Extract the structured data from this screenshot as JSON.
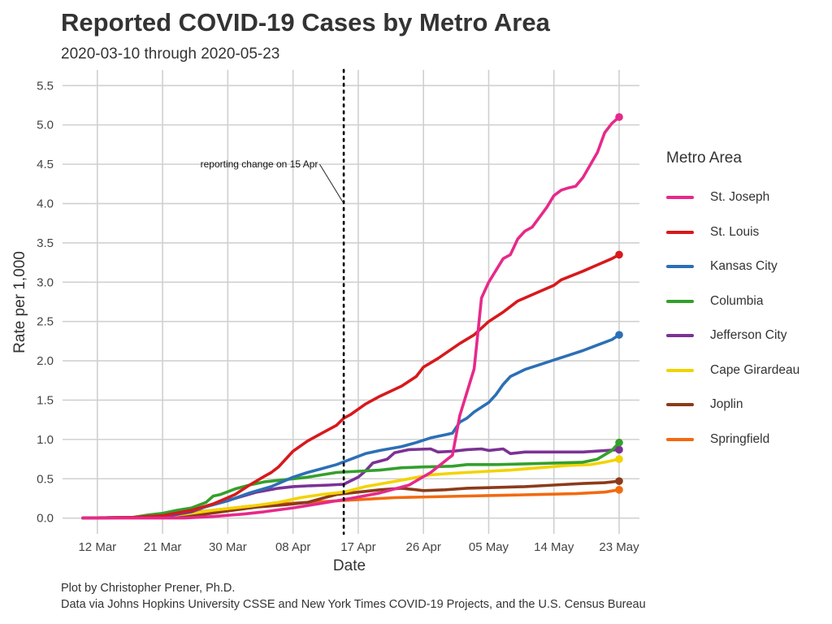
{
  "chart_data": {
    "type": "line",
    "title": "Reported COVID-19 Cases by Metro Area",
    "subtitle": "2020-03-10 through 2020-05-23",
    "xlabel": "Date",
    "ylabel": "Rate per 1,000",
    "xlim": [
      "2020-03-10",
      "2020-05-23"
    ],
    "ylim": [
      -0.2,
      5.7
    ],
    "x_ticks": [
      {
        "date": "2020-03-12",
        "label": "12 Mar"
      },
      {
        "date": "2020-03-21",
        "label": "21 Mar"
      },
      {
        "date": "2020-03-30",
        "label": "30 Mar"
      },
      {
        "date": "2020-04-08",
        "label": "08 Apr"
      },
      {
        "date": "2020-04-17",
        "label": "17 Apr"
      },
      {
        "date": "2020-04-26",
        "label": "26 Apr"
      },
      {
        "date": "2020-05-05",
        "label": "05 May"
      },
      {
        "date": "2020-05-14",
        "label": "14 May"
      },
      {
        "date": "2020-05-23",
        "label": "23 May"
      }
    ],
    "y_ticks": [
      "0.0",
      "0.5",
      "1.0",
      "1.5",
      "2.0",
      "2.5",
      "3.0",
      "3.5",
      "4.0",
      "4.5",
      "5.0",
      "5.5"
    ],
    "grid": true,
    "legend_title": "Metro Area",
    "legend_position": "right",
    "annotation": {
      "text": "reporting change on 15 Apr",
      "date": "2020-04-15",
      "label_date": "2020-04-11",
      "label_y": 4.5,
      "arrow_y": 4.0,
      "line_style": "dotted"
    },
    "series": [
      {
        "name": "St. Joseph",
        "color": "#e7298a",
        "points": [
          [
            "2020-03-10",
            0
          ],
          [
            "2020-03-24",
            0
          ],
          [
            "2020-03-28",
            0.02
          ],
          [
            "2020-04-01",
            0.05
          ],
          [
            "2020-04-04",
            0.08
          ],
          [
            "2020-04-08",
            0.13
          ],
          [
            "2020-04-12",
            0.19
          ],
          [
            "2020-04-16",
            0.25
          ],
          [
            "2020-04-20",
            0.32
          ],
          [
            "2020-04-24",
            0.42
          ],
          [
            "2020-04-27",
            0.58
          ],
          [
            "2020-04-30",
            0.8
          ],
          [
            "2020-05-01",
            1.3
          ],
          [
            "2020-05-02",
            1.6
          ],
          [
            "2020-05-03",
            1.9
          ],
          [
            "2020-05-04",
            2.8
          ],
          [
            "2020-05-05",
            3.0
          ],
          [
            "2020-05-07",
            3.3
          ],
          [
            "2020-05-08",
            3.35
          ],
          [
            "2020-05-09",
            3.55
          ],
          [
            "2020-05-10",
            3.65
          ],
          [
            "2020-05-11",
            3.7
          ],
          [
            "2020-05-13",
            3.95
          ],
          [
            "2020-05-14",
            4.1
          ],
          [
            "2020-05-15",
            4.17
          ],
          [
            "2020-05-16",
            4.2
          ],
          [
            "2020-05-17",
            4.22
          ],
          [
            "2020-05-18",
            4.33
          ],
          [
            "2020-05-20",
            4.65
          ],
          [
            "2020-05-21",
            4.9
          ],
          [
            "2020-05-22",
            5.02
          ],
          [
            "2020-05-23",
            5.1
          ]
        ]
      },
      {
        "name": "St. Louis",
        "color": "#d7191c",
        "points": [
          [
            "2020-03-10",
            0
          ],
          [
            "2020-03-17",
            0.01
          ],
          [
            "2020-03-21",
            0.03
          ],
          [
            "2020-03-25",
            0.1
          ],
          [
            "2020-03-28",
            0.18
          ],
          [
            "2020-03-31",
            0.3
          ],
          [
            "2020-04-02",
            0.42
          ],
          [
            "2020-04-04",
            0.53
          ],
          [
            "2020-04-05",
            0.58
          ],
          [
            "2020-04-06",
            0.65
          ],
          [
            "2020-04-08",
            0.85
          ],
          [
            "2020-04-10",
            0.98
          ],
          [
            "2020-04-12",
            1.08
          ],
          [
            "2020-04-14",
            1.18
          ],
          [
            "2020-04-15",
            1.27
          ],
          [
            "2020-04-16",
            1.32
          ],
          [
            "2020-04-18",
            1.45
          ],
          [
            "2020-04-20",
            1.55
          ],
          [
            "2020-04-23",
            1.68
          ],
          [
            "2020-04-25",
            1.8
          ],
          [
            "2020-04-26",
            1.92
          ],
          [
            "2020-04-28",
            2.03
          ],
          [
            "2020-05-01",
            2.22
          ],
          [
            "2020-05-03",
            2.33
          ],
          [
            "2020-05-05",
            2.5
          ],
          [
            "2020-05-07",
            2.62
          ],
          [
            "2020-05-09",
            2.76
          ],
          [
            "2020-05-12",
            2.88
          ],
          [
            "2020-05-14",
            2.96
          ],
          [
            "2020-05-15",
            3.03
          ],
          [
            "2020-05-18",
            3.14
          ],
          [
            "2020-05-20",
            3.22
          ],
          [
            "2020-05-22",
            3.3
          ],
          [
            "2020-05-23",
            3.35
          ]
        ]
      },
      {
        "name": "Kansas City",
        "color": "#2c6fb5",
        "points": [
          [
            "2020-03-10",
            0
          ],
          [
            "2020-03-18",
            0.01
          ],
          [
            "2020-03-22",
            0.04
          ],
          [
            "2020-03-26",
            0.12
          ],
          [
            "2020-03-30",
            0.22
          ],
          [
            "2020-04-02",
            0.32
          ],
          [
            "2020-04-05",
            0.4
          ],
          [
            "2020-04-08",
            0.52
          ],
          [
            "2020-04-10",
            0.58
          ],
          [
            "2020-04-12",
            0.63
          ],
          [
            "2020-04-14",
            0.68
          ],
          [
            "2020-04-16",
            0.75
          ],
          [
            "2020-04-18",
            0.82
          ],
          [
            "2020-04-20",
            0.86
          ],
          [
            "2020-04-23",
            0.91
          ],
          [
            "2020-04-25",
            0.96
          ],
          [
            "2020-04-27",
            1.02
          ],
          [
            "2020-04-29",
            1.06
          ],
          [
            "2020-04-30",
            1.08
          ],
          [
            "2020-05-01",
            1.22
          ],
          [
            "2020-05-02",
            1.27
          ],
          [
            "2020-05-03",
            1.35
          ],
          [
            "2020-05-05",
            1.47
          ],
          [
            "2020-05-06",
            1.57
          ],
          [
            "2020-05-07",
            1.7
          ],
          [
            "2020-05-08",
            1.8
          ],
          [
            "2020-05-10",
            1.89
          ],
          [
            "2020-05-12",
            1.95
          ],
          [
            "2020-05-14",
            2.01
          ],
          [
            "2020-05-16",
            2.07
          ],
          [
            "2020-05-18",
            2.13
          ],
          [
            "2020-05-20",
            2.2
          ],
          [
            "2020-05-22",
            2.27
          ],
          [
            "2020-05-23",
            2.33
          ]
        ]
      },
      {
        "name": "Columbia",
        "color": "#33a02c",
        "points": [
          [
            "2020-03-10",
            0
          ],
          [
            "2020-03-17",
            0.01
          ],
          [
            "2020-03-19",
            0.04
          ],
          [
            "2020-03-21",
            0.06
          ],
          [
            "2020-03-23",
            0.1
          ],
          [
            "2020-03-25",
            0.13
          ],
          [
            "2020-03-27",
            0.2
          ],
          [
            "2020-03-28",
            0.28
          ],
          [
            "2020-03-29",
            0.3
          ],
          [
            "2020-03-31",
            0.37
          ],
          [
            "2020-04-02",
            0.42
          ],
          [
            "2020-04-04",
            0.46
          ],
          [
            "2020-04-06",
            0.48
          ],
          [
            "2020-04-08",
            0.5
          ],
          [
            "2020-04-10",
            0.52
          ],
          [
            "2020-04-12",
            0.55
          ],
          [
            "2020-04-14",
            0.58
          ],
          [
            "2020-04-16",
            0.59
          ],
          [
            "2020-04-20",
            0.61
          ],
          [
            "2020-04-23",
            0.64
          ],
          [
            "2020-04-26",
            0.65
          ],
          [
            "2020-04-30",
            0.66
          ],
          [
            "2020-05-02",
            0.68
          ],
          [
            "2020-05-06",
            0.68
          ],
          [
            "2020-05-10",
            0.69
          ],
          [
            "2020-05-14",
            0.7
          ],
          [
            "2020-05-18",
            0.71
          ],
          [
            "2020-05-20",
            0.75
          ],
          [
            "2020-05-22",
            0.86
          ],
          [
            "2020-05-23",
            0.96
          ]
        ]
      },
      {
        "name": "Jefferson City",
        "color": "#7b3294",
        "points": [
          [
            "2020-03-10",
            0
          ],
          [
            "2020-03-19",
            0.01
          ],
          [
            "2020-03-22",
            0.03
          ],
          [
            "2020-03-25",
            0.08
          ],
          [
            "2020-03-28",
            0.18
          ],
          [
            "2020-03-31",
            0.25
          ],
          [
            "2020-04-03",
            0.33
          ],
          [
            "2020-04-06",
            0.38
          ],
          [
            "2020-04-08",
            0.4
          ],
          [
            "2020-04-10",
            0.41
          ],
          [
            "2020-04-13",
            0.42
          ],
          [
            "2020-04-15",
            0.43
          ],
          [
            "2020-04-17",
            0.52
          ],
          [
            "2020-04-18",
            0.6
          ],
          [
            "2020-04-19",
            0.7
          ],
          [
            "2020-04-21",
            0.75
          ],
          [
            "2020-04-22",
            0.83
          ],
          [
            "2020-04-24",
            0.87
          ],
          [
            "2020-04-27",
            0.88
          ],
          [
            "2020-04-28",
            0.84
          ],
          [
            "2020-04-30",
            0.85
          ],
          [
            "2020-05-02",
            0.87
          ],
          [
            "2020-05-04",
            0.88
          ],
          [
            "2020-05-05",
            0.86
          ],
          [
            "2020-05-07",
            0.88
          ],
          [
            "2020-05-08",
            0.82
          ],
          [
            "2020-05-10",
            0.84
          ],
          [
            "2020-05-14",
            0.84
          ],
          [
            "2020-05-18",
            0.84
          ],
          [
            "2020-05-23",
            0.87
          ]
        ]
      },
      {
        "name": "Cape Girardeau",
        "color": "#f2d300",
        "points": [
          [
            "2020-03-10",
            0
          ],
          [
            "2020-03-20",
            0.01
          ],
          [
            "2020-03-24",
            0.05
          ],
          [
            "2020-03-28",
            0.1
          ],
          [
            "2020-04-02",
            0.15
          ],
          [
            "2020-04-06",
            0.2
          ],
          [
            "2020-04-09",
            0.26
          ],
          [
            "2020-04-12",
            0.3
          ],
          [
            "2020-04-15",
            0.33
          ],
          [
            "2020-04-18",
            0.4
          ],
          [
            "2020-04-21",
            0.45
          ],
          [
            "2020-04-24",
            0.5
          ],
          [
            "2020-04-27",
            0.55
          ],
          [
            "2020-04-30",
            0.57
          ],
          [
            "2020-05-04",
            0.59
          ],
          [
            "2020-05-08",
            0.61
          ],
          [
            "2020-05-12",
            0.64
          ],
          [
            "2020-05-16",
            0.67
          ],
          [
            "2020-05-19",
            0.68
          ],
          [
            "2020-05-21",
            0.71
          ],
          [
            "2020-05-23",
            0.75
          ]
        ]
      },
      {
        "name": "Joplin",
        "color": "#8c3b1a",
        "points": [
          [
            "2020-03-10",
            0
          ],
          [
            "2020-03-22",
            0.01
          ],
          [
            "2020-03-26",
            0.04
          ],
          [
            "2020-03-30",
            0.09
          ],
          [
            "2020-04-03",
            0.14
          ],
          [
            "2020-04-07",
            0.17
          ],
          [
            "2020-04-10",
            0.2
          ],
          [
            "2020-04-12",
            0.25
          ],
          [
            "2020-04-14",
            0.3
          ],
          [
            "2020-04-17",
            0.33
          ],
          [
            "2020-04-20",
            0.36
          ],
          [
            "2020-04-23",
            0.38
          ],
          [
            "2020-04-26",
            0.35
          ],
          [
            "2020-04-29",
            0.36
          ],
          [
            "2020-05-02",
            0.38
          ],
          [
            "2020-05-06",
            0.39
          ],
          [
            "2020-05-10",
            0.4
          ],
          [
            "2020-05-14",
            0.42
          ],
          [
            "2020-05-18",
            0.44
          ],
          [
            "2020-05-21",
            0.45
          ],
          [
            "2020-05-23",
            0.47
          ]
        ]
      },
      {
        "name": "Springfield",
        "color": "#f16a10",
        "points": [
          [
            "2020-03-10",
            0
          ],
          [
            "2020-03-20",
            0.01
          ],
          [
            "2020-03-24",
            0.06
          ],
          [
            "2020-03-28",
            0.1
          ],
          [
            "2020-04-02",
            0.15
          ],
          [
            "2020-04-06",
            0.18
          ],
          [
            "2020-04-10",
            0.2
          ],
          [
            "2020-04-14",
            0.22
          ],
          [
            "2020-04-18",
            0.24
          ],
          [
            "2020-04-22",
            0.26
          ],
          [
            "2020-04-27",
            0.27
          ],
          [
            "2020-05-02",
            0.28
          ],
          [
            "2020-05-07",
            0.29
          ],
          [
            "2020-05-12",
            0.3
          ],
          [
            "2020-05-17",
            0.31
          ],
          [
            "2020-05-21",
            0.33
          ],
          [
            "2020-05-23",
            0.36
          ]
        ]
      }
    ]
  },
  "caption_line1": "Plot by Christopher Prener, Ph.D.",
  "caption_line2": "Data via Johns Hopkins University CSSE and New York Times COVID-19 Projects, and the U.S. Census Bureau"
}
